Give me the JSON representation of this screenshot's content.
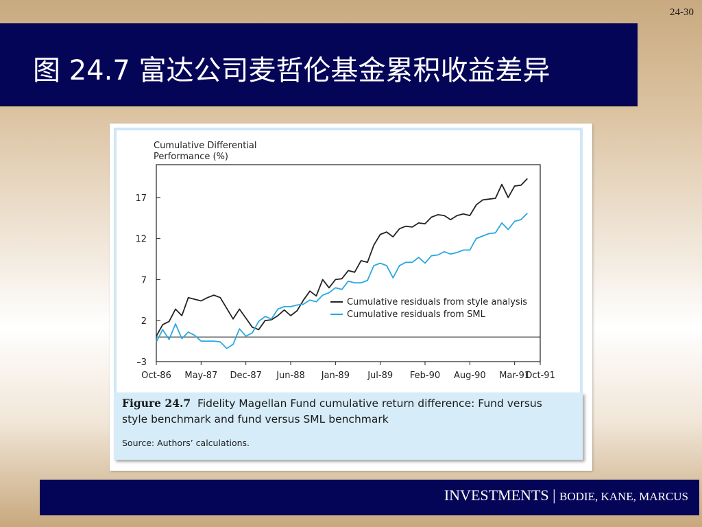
{
  "slide": {
    "number": "24-30",
    "title": "图 24.7 富达公司麦哲伦基金累积收益差异"
  },
  "footer": {
    "main": "INVESTMENTS",
    "separator": " | ",
    "authors": "BODIE, KANE, MARCUS"
  },
  "caption": {
    "figure_label": "Figure 24.7",
    "line1": "Fidelity Magellan Fund cumulative return difference: Fund versus",
    "line2": "style benchmark and fund versus SML benchmark",
    "source": "Source: Authors’ calculations."
  },
  "colors": {
    "style_series": "#222222",
    "sml_series": "#2aa8e0",
    "title_bar": "#050558"
  },
  "chart_data": {
    "type": "line",
    "ylabel_line1": "Cumulative Differential",
    "ylabel_line2": "Performance (%)",
    "ylim": [
      -3,
      21
    ],
    "yticks": [
      17,
      12,
      7,
      2,
      -3
    ],
    "ytick_labels": [
      "17",
      "12",
      "7",
      "2",
      "–3"
    ],
    "xlim": [
      0,
      60
    ],
    "xticks": [
      0,
      7,
      14,
      21,
      28,
      35,
      42,
      49,
      56,
      60
    ],
    "xtick_labels": [
      "Oct-86",
      "May-87",
      "Dec-87",
      "Jun-88",
      "Jan-89",
      "Jul-89",
      "Feb-90",
      "Aug-90",
      "Mar-91",
      "Oct-91"
    ],
    "zero_line": 0,
    "legend_position": "right",
    "series": [
      {
        "name": "Cumulative residuals from style analysis",
        "values": [
          0.1,
          1.5,
          1.9,
          3.4,
          2.6,
          4.8,
          4.6,
          4.4,
          4.8,
          5.1,
          4.8,
          3.5,
          2.2,
          3.4,
          2.3,
          1.2,
          0.9,
          2.0,
          2.1,
          2.6,
          3.3,
          2.6,
          3.2,
          4.5,
          5.6,
          5.0,
          7.0,
          6.0,
          7.0,
          7.1,
          8.1,
          7.9,
          9.3,
          9.1,
          11.2,
          12.5,
          12.8,
          12.2,
          13.2,
          13.5,
          13.4,
          13.9,
          13.8,
          14.6,
          14.9,
          14.8,
          14.3,
          14.8,
          15.0,
          14.8,
          16.1,
          16.7,
          16.8,
          16.9,
          18.6,
          17.0,
          18.4,
          18.5,
          19.3
        ]
      },
      {
        "name": "Cumulative residuals from SML",
        "values": [
          -0.6,
          0.9,
          -0.3,
          1.6,
          -0.2,
          0.6,
          0.2,
          -0.5,
          -0.5,
          -0.5,
          -0.6,
          -1.4,
          -0.9,
          1.0,
          0.1,
          0.5,
          1.9,
          2.5,
          2.2,
          3.4,
          3.7,
          3.7,
          3.9,
          4.0,
          4.5,
          4.3,
          5.1,
          5.4,
          6.0,
          5.8,
          6.8,
          6.6,
          6.6,
          6.9,
          8.7,
          9.0,
          8.7,
          7.2,
          8.7,
          9.1,
          9.1,
          9.7,
          9.0,
          9.9,
          10.0,
          10.4,
          10.1,
          10.3,
          10.6,
          10.6,
          12.0,
          12.3,
          12.6,
          12.7,
          13.9,
          13.1,
          14.1,
          14.3,
          15.1
        ]
      }
    ]
  }
}
